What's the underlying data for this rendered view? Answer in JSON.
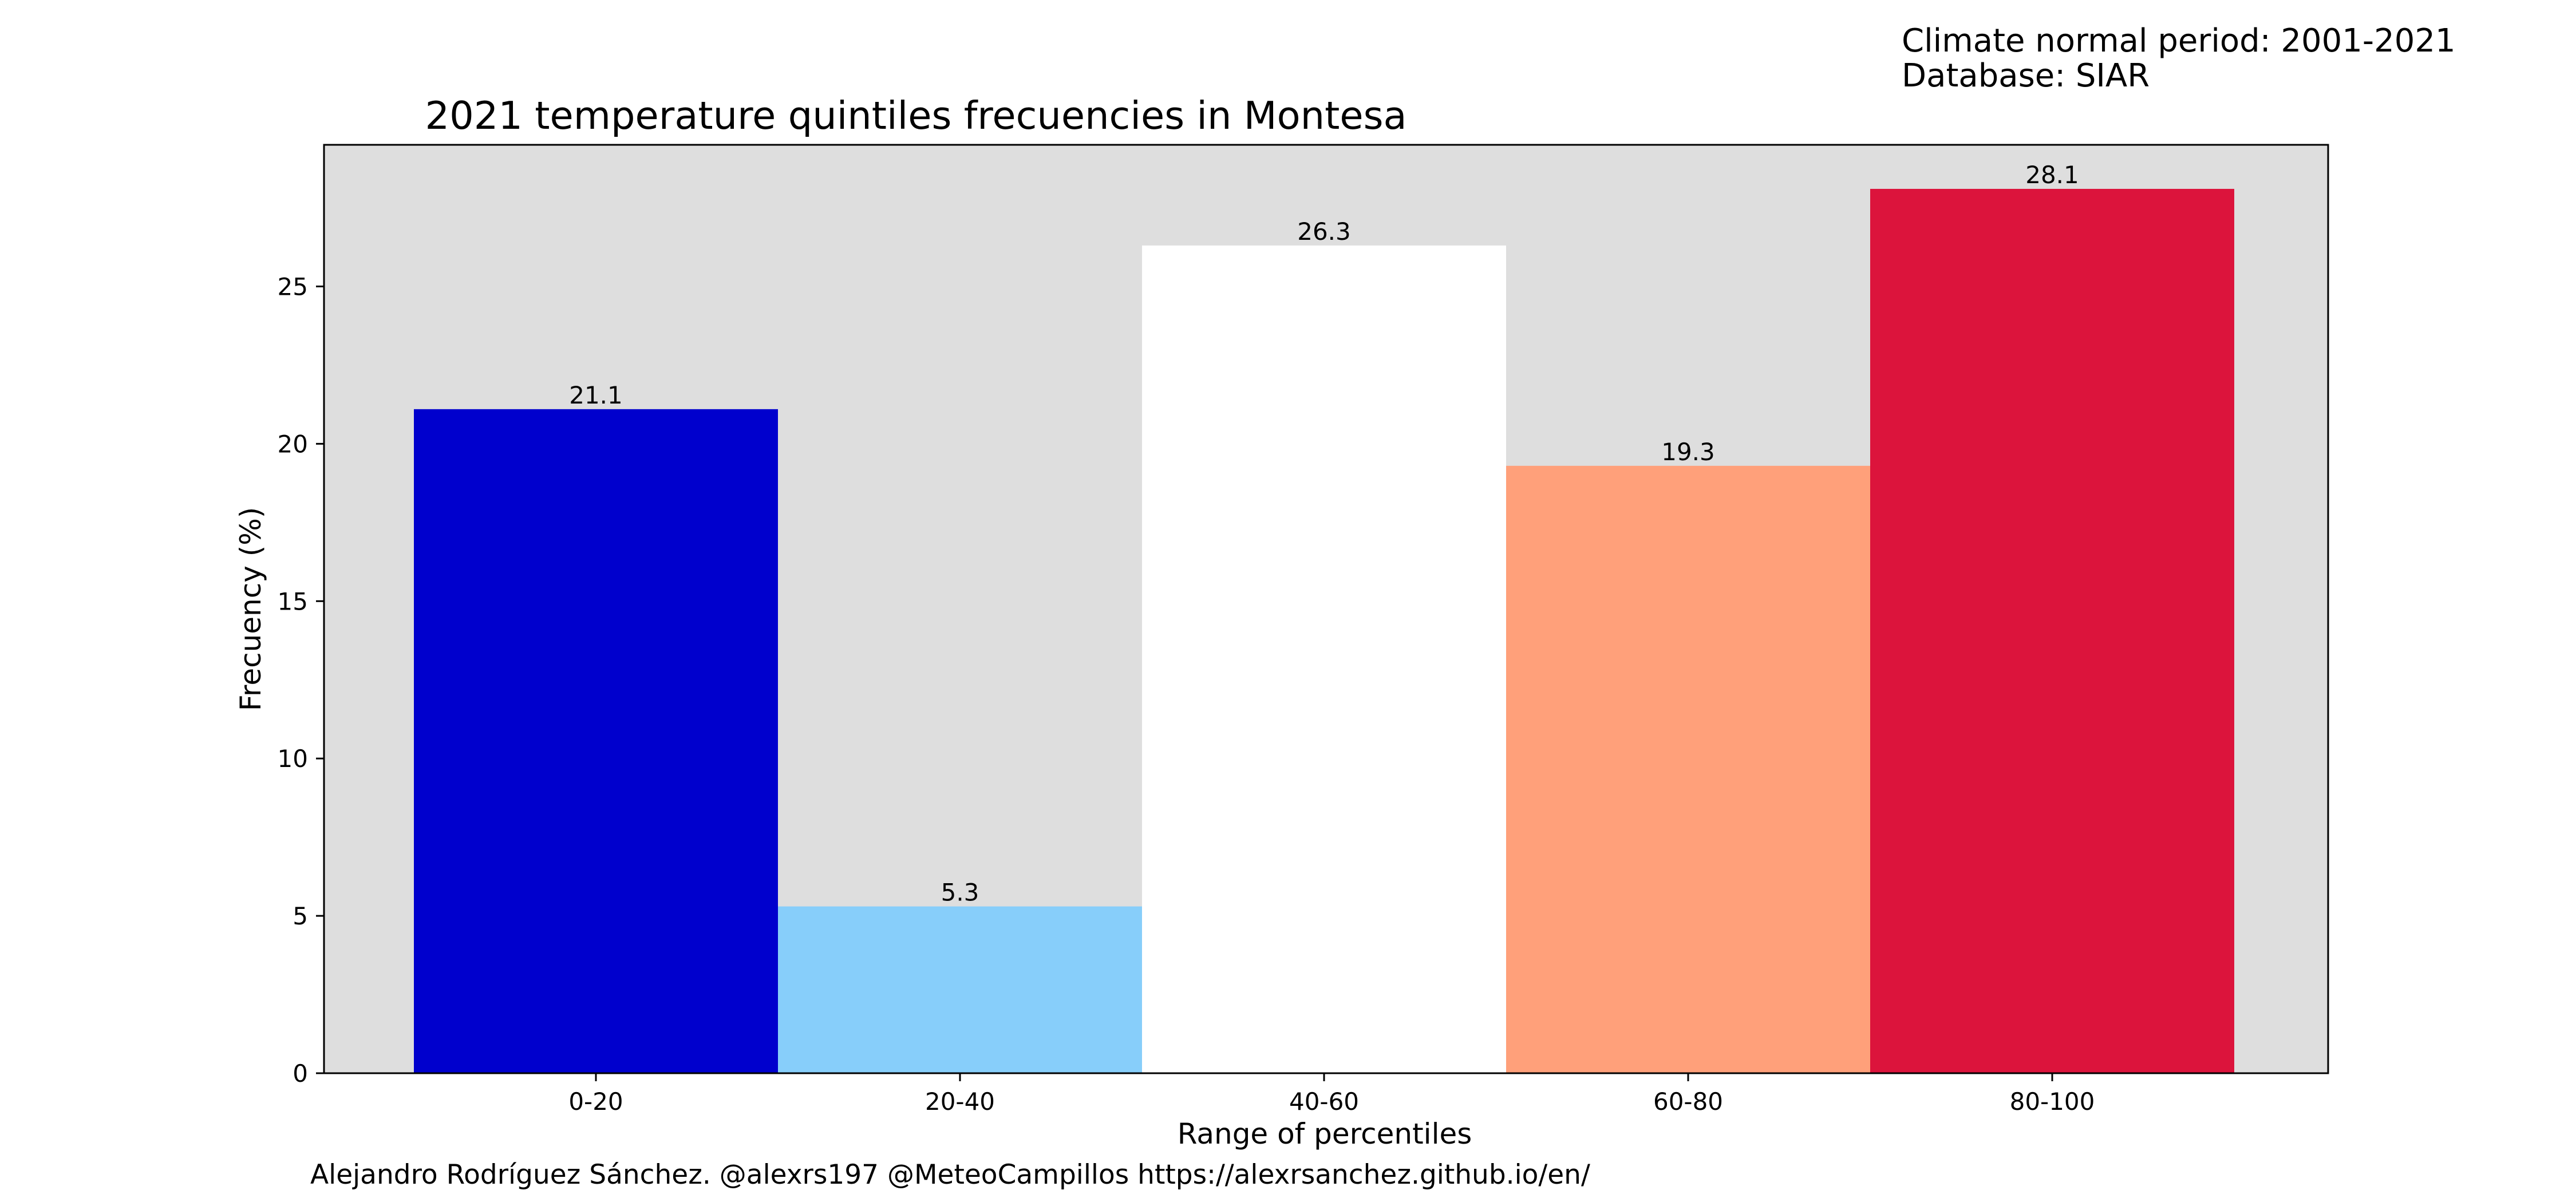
{
  "header_info": {
    "line1": "Climate normal period: 2001-2021",
    "line2": "Database: SIAR"
  },
  "footer": {
    "credit": "Alejandro Rodríguez Sánchez. @alexrs197 @MeteoCampillos   https://alexrsanchez.github.io/en/"
  },
  "chart_data": {
    "type": "bar",
    "title": "2021 temperature quintiles frecuencies in Montesa",
    "xlabel": "Range of percentiles",
    "ylabel": "Frecuency (%)",
    "categories": [
      "0-20",
      "20-40",
      "40-60",
      "60-80",
      "80-100"
    ],
    "values": [
      21.1,
      5.3,
      26.3,
      19.3,
      28.1
    ],
    "data_labels": [
      "21.1",
      "5.3",
      "26.3",
      "19.3",
      "28.1"
    ],
    "colors": [
      "#0000cd",
      "#87cefa",
      "#ffffff",
      "#ffa07a",
      "#dc143c"
    ],
    "ylim": [
      0,
      29.5
    ],
    "yticks": [
      0,
      5,
      10,
      15,
      20,
      25
    ],
    "plot_background": "#dedede",
    "grid": false,
    "legend": "none"
  }
}
